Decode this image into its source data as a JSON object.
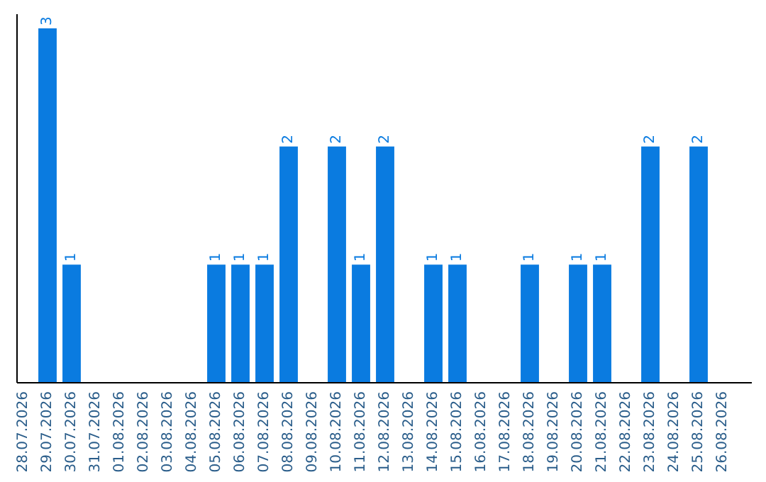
{
  "chart_data": {
    "type": "bar",
    "categories": [
      "28.07.2026",
      "29.07.2026",
      "30.07.2026",
      "31.07.2026",
      "01.08.2026",
      "02.08.2026",
      "03.08.2026",
      "04.08.2026",
      "05.08.2026",
      "06.08.2026",
      "07.08.2026",
      "08.08.2026",
      "09.08.2026",
      "10.08.2026",
      "11.08.2026",
      "12.08.2026",
      "13.08.2026",
      "14.08.2026",
      "15.08.2026",
      "16.08.2026",
      "17.08.2026",
      "18.08.2026",
      "19.08.2026",
      "20.08.2026",
      "21.08.2026",
      "22.08.2026",
      "23.08.2026",
      "24.08.2026",
      "25.08.2026",
      "26.08.2026"
    ],
    "values": [
      0,
      3,
      1,
      0,
      0,
      0,
      0,
      0,
      1,
      1,
      1,
      2,
      0,
      2,
      1,
      2,
      0,
      1,
      1,
      0,
      0,
      1,
      0,
      1,
      1,
      0,
      2,
      0,
      2,
      0
    ],
    "value_labels": [
      null,
      "3",
      "1",
      null,
      null,
      null,
      null,
      null,
      "1",
      "1",
      "1",
      "2",
      null,
      "2",
      "1",
      "2",
      null,
      "1",
      "1",
      null,
      null,
      "1",
      null,
      "1",
      "1",
      null,
      "2",
      null,
      "2",
      null
    ],
    "color": "#0a7be0",
    "tick_labels": "x"
  }
}
